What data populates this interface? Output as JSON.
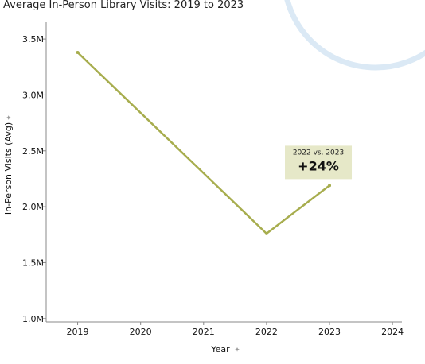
{
  "title": "Average In-Person Library Visits: 2019 to 2023",
  "colors": {
    "line": "#a7ad4e",
    "annotation_bg": "#e6e8c8",
    "axis": "#888888",
    "watermark": "#dbe9f5"
  },
  "chart_data": {
    "type": "line",
    "title": "Average In-Person Library Visits: 2019 to 2023",
    "xlabel": "Year",
    "ylabel": "In-Person Visits (Avg)",
    "xlim": [
      2018.5,
      2024.15
    ],
    "ylim": [
      0.97,
      3.65
    ],
    "x_ticks": [
      2019,
      2020,
      2021,
      2022,
      2023,
      2024
    ],
    "x_tick_labels": [
      "2019",
      "2020",
      "2021",
      "2022",
      "2023",
      "2024"
    ],
    "y_ticks": [
      1.0,
      1.5,
      2.0,
      2.5,
      3.0,
      3.5
    ],
    "y_tick_labels": [
      "1.0M",
      "1.5M",
      "2.0M",
      "2.5M",
      "3.0M",
      "3.5M"
    ],
    "y_unit": "millions",
    "grid": false,
    "series": [
      {
        "x": [
          2019,
          2022,
          2023
        ],
        "values": [
          3.38,
          1.76,
          2.19
        ]
      }
    ],
    "annotation": {
      "label": "2022 vs. 2023",
      "value": "+24%"
    }
  }
}
